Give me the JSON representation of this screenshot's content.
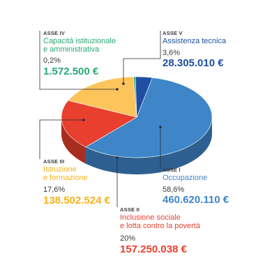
{
  "colors": {
    "occupazione": "#3f86c8",
    "inclusione": "#e83f2e",
    "istruzione": "#fdc45c",
    "capacita": "#2aa876",
    "assistenza": "#1e4fa3",
    "text_dark": "#3a3a3a",
    "leader": "#2b2b2b"
  },
  "chart_data": {
    "type": "pie",
    "series": [
      {
        "asse": "ASSE I",
        "label": "Occupazione",
        "percent": "58,6%",
        "value": 58.6,
        "amount": "460.620.110 €"
      },
      {
        "asse": "ASSE II",
        "label": "Inclusione sociale e lotta contro la povertà",
        "percent": "20%",
        "value": 20.0,
        "amount": "157.250.038 €"
      },
      {
        "asse": "ASSE III",
        "label": "Istruzione e formazione",
        "percent": "17,6%",
        "value": 17.6,
        "amount": "138.502.524 €"
      },
      {
        "asse": "ASSE IV",
        "label": "Capacità istituzionale e amministrativa",
        "percent": "0,2%",
        "value": 0.2,
        "amount": "1.572.500 €"
      },
      {
        "asse": "ASSE V",
        "label": "Assistenza tecnica",
        "percent": "3,6%",
        "value": 3.6,
        "amount": "28.305.010 €"
      }
    ]
  },
  "labels": {
    "asse1": {
      "asse": "ASSE I",
      "name1": "Occupazione",
      "name2": "",
      "percent": "58,6%",
      "amount": "460.620.110 €"
    },
    "asse2": {
      "asse": "ASSE II",
      "name1": "Inclusione sociale",
      "name2": "e lotta contro la povertà",
      "percent": "20%",
      "amount": "157.250.038 €"
    },
    "asse3": {
      "asse": "ASSE III",
      "name1": "Istruzione",
      "name2": "e formazione",
      "percent": "17,6%",
      "amount": "138.502.524 €"
    },
    "asse4": {
      "asse": "ASSE IV",
      "name1": "Capacità istituzionale",
      "name2": "e amministrativa",
      "percent": "0,2%",
      "amount": "1.572.500 €"
    },
    "asse5": {
      "asse": "ASSE V",
      "name1": "Assistenza tecnica",
      "name2": "",
      "percent": "3,6%",
      "amount": "28.305.010 €"
    }
  }
}
